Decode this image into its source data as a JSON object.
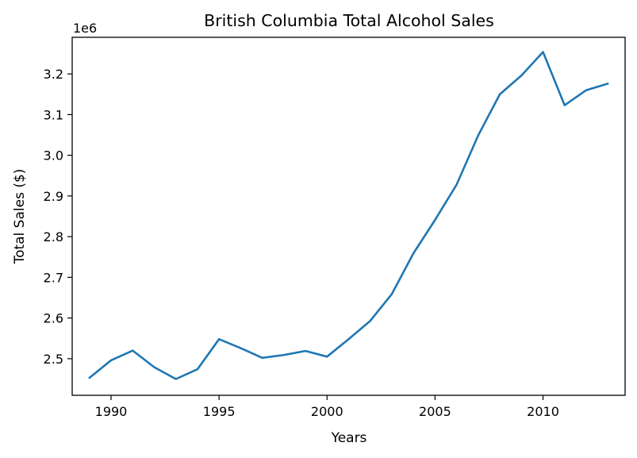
{
  "chart_data": {
    "type": "line",
    "title": "British Columbia Total Alcohol Sales",
    "xlabel": "Years",
    "ylabel": "Total Sales ($)",
    "y_offset_label": "1e6",
    "xlim": [
      1988.2,
      2013.8
    ],
    "ylim": [
      2.41,
      3.29
    ],
    "x_ticks": [
      1990,
      1995,
      2000,
      2005,
      2010
    ],
    "y_ticks": [
      2.5,
      2.6,
      2.7,
      2.8,
      2.9,
      3.0,
      3.1,
      3.2
    ],
    "grid": false,
    "line_color": "#1f77b4",
    "series": [
      {
        "x": [
          1989,
          1990,
          1991,
          1992,
          1993,
          1994,
          1995,
          1996,
          1997,
          1998,
          1999,
          2000,
          2001,
          2002,
          2003,
          2004,
          2005,
          2006,
          2007,
          2008,
          2009,
          2010,
          2011,
          2012,
          2013
        ],
        "values": [
          2.453,
          2.496,
          2.52,
          2.479,
          2.45,
          2.474,
          2.548,
          2.526,
          2.502,
          2.509,
          2.519,
          2.505,
          2.548,
          2.593,
          2.659,
          2.759,
          2.841,
          2.928,
          3.049,
          3.15,
          3.196,
          3.254,
          3.123,
          3.16,
          3.176
        ]
      }
    ]
  }
}
